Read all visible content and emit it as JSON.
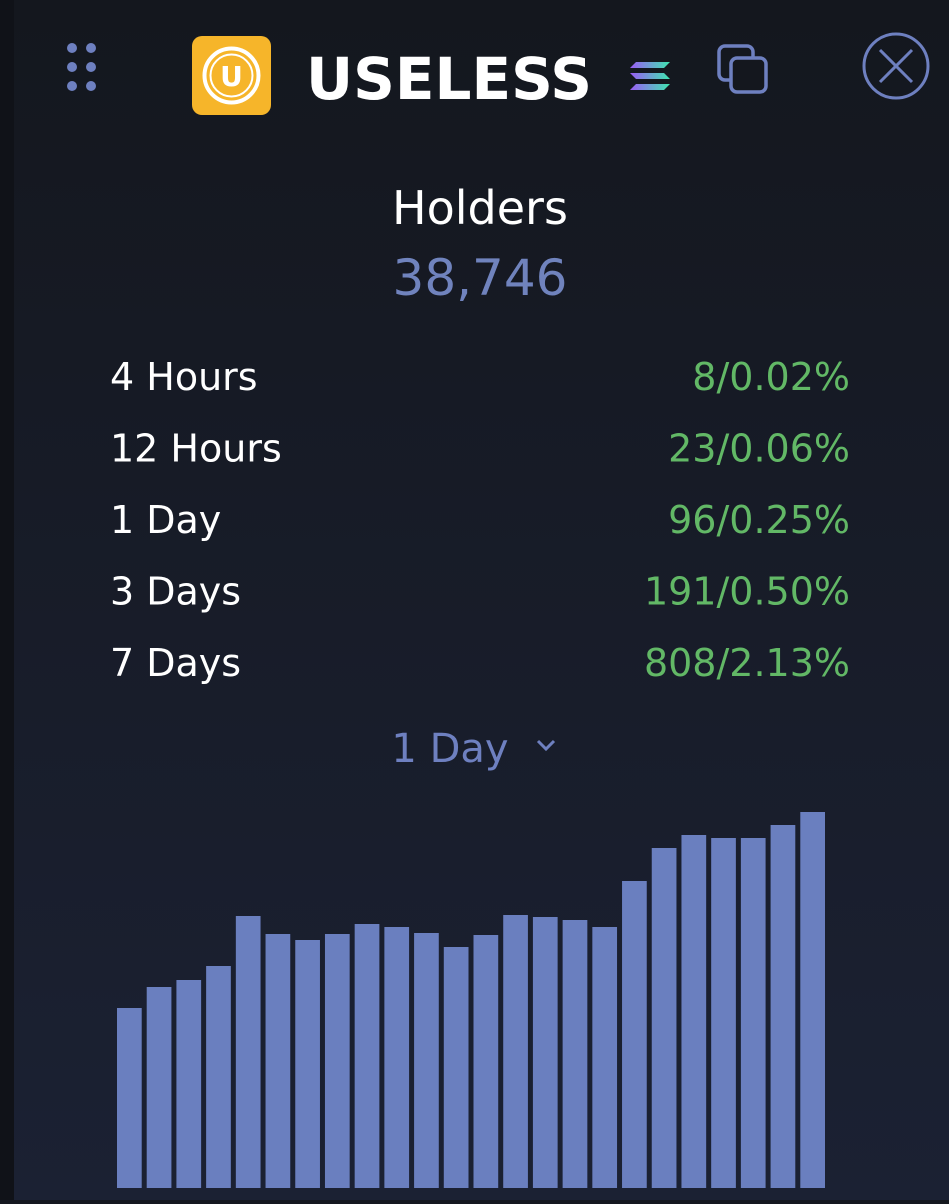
{
  "header": {
    "title": "USELESS"
  },
  "holders": {
    "label": "Holders",
    "value": "38,746"
  },
  "stats": [
    {
      "period": "4 Hours",
      "change": "8/0.02%"
    },
    {
      "period": "12 Hours",
      "change": "23/0.06%"
    },
    {
      "period": "1 Day",
      "change": "96/0.25%"
    },
    {
      "period": "3 Days",
      "change": "191/0.50%"
    },
    {
      "period": "7 Days",
      "change": "808/2.13%"
    }
  ],
  "period_selector": "1 Day",
  "chart_data": {
    "type": "bar",
    "color": "#6a7fbf",
    "values": [
      180,
      201,
      208,
      222,
      272,
      254,
      248,
      254,
      264,
      261,
      255,
      241,
      253,
      273,
      271,
      268,
      261,
      307,
      340,
      353,
      350,
      350,
      363,
      376
    ]
  }
}
